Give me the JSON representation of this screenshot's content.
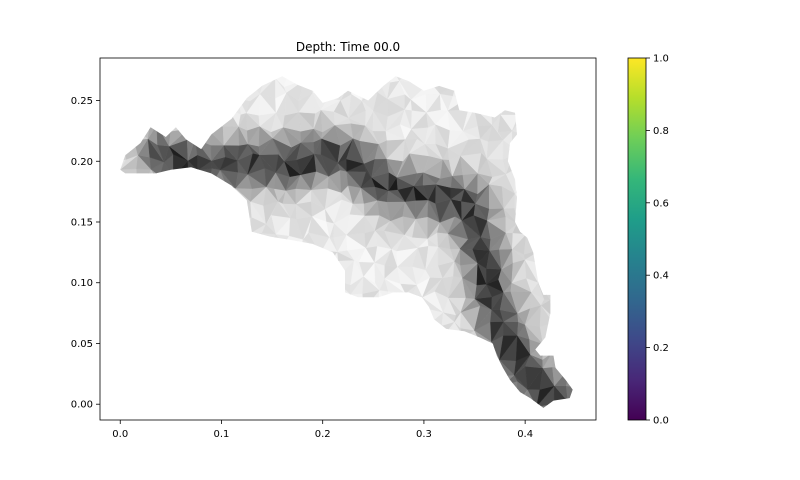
{
  "chart_data": {
    "type": "heatmap",
    "title": "Depth: Time 00.0",
    "xlabel": "",
    "ylabel": "",
    "xlim": [
      -0.02,
      0.47
    ],
    "ylim": [
      -0.013,
      0.285
    ],
    "xticks": [
      0.0,
      0.1,
      0.2,
      0.3,
      0.4
    ],
    "xtick_labels": [
      "0.0",
      "0.1",
      "0.2",
      "0.3",
      "0.4"
    ],
    "yticks": [
      0.0,
      0.05,
      0.1,
      0.15,
      0.2,
      0.25
    ],
    "ytick_labels": [
      "0.00",
      "0.05",
      "0.10",
      "0.15",
      "0.20",
      "0.25"
    ],
    "grid": false,
    "surface_colormap": "gray (light = shallow, dark = deep)",
    "colorbar": {
      "colormap": "viridis",
      "range": [
        0.0,
        1.0
      ],
      "ticks": [
        0.0,
        0.2,
        0.4,
        0.6,
        0.8,
        1.0
      ],
      "tick_labels": [
        "0.0",
        "0.2",
        "0.4",
        "0.6",
        "0.8",
        "1.0"
      ],
      "colors": [
        "#440154",
        "#482878",
        "#3e4989",
        "#31688e",
        "#26828e",
        "#1f9e89",
        "#35b779",
        "#6ece58",
        "#b5de2b",
        "#fde725"
      ]
    },
    "domain_outline": [
      [
        0.0,
        0.193
      ],
      [
        0.005,
        0.205
      ],
      [
        0.02,
        0.215
      ],
      [
        0.03,
        0.228
      ],
      [
        0.045,
        0.22
      ],
      [
        0.055,
        0.228
      ],
      [
        0.065,
        0.218
      ],
      [
        0.08,
        0.21
      ],
      [
        0.09,
        0.222
      ],
      [
        0.11,
        0.235
      ],
      [
        0.125,
        0.252
      ],
      [
        0.14,
        0.262
      ],
      [
        0.16,
        0.27
      ],
      [
        0.175,
        0.263
      ],
      [
        0.19,
        0.258
      ],
      [
        0.2,
        0.248
      ],
      [
        0.215,
        0.252
      ],
      [
        0.225,
        0.258
      ],
      [
        0.245,
        0.25
      ],
      [
        0.26,
        0.262
      ],
      [
        0.272,
        0.27
      ],
      [
        0.285,
        0.266
      ],
      [
        0.3,
        0.258
      ],
      [
        0.315,
        0.262
      ],
      [
        0.33,
        0.258
      ],
      [
        0.335,
        0.242
      ],
      [
        0.35,
        0.24
      ],
      [
        0.37,
        0.236
      ],
      [
        0.38,
        0.242
      ],
      [
        0.39,
        0.24
      ],
      [
        0.392,
        0.222
      ],
      [
        0.385,
        0.215
      ],
      [
        0.383,
        0.2
      ],
      [
        0.39,
        0.185
      ],
      [
        0.392,
        0.17
      ],
      [
        0.39,
        0.15
      ],
      [
        0.395,
        0.142
      ],
      [
        0.402,
        0.137
      ],
      [
        0.408,
        0.125
      ],
      [
        0.413,
        0.1
      ],
      [
        0.418,
        0.09
      ],
      [
        0.425,
        0.09
      ],
      [
        0.425,
        0.075
      ],
      [
        0.42,
        0.055
      ],
      [
        0.41,
        0.045
      ],
      [
        0.415,
        0.04
      ],
      [
        0.428,
        0.04
      ],
      [
        0.43,
        0.03
      ],
      [
        0.44,
        0.02
      ],
      [
        0.447,
        0.012
      ],
      [
        0.444,
        0.005
      ],
      [
        0.428,
        0.003
      ],
      [
        0.418,
        -0.003
      ],
      [
        0.405,
        0.005
      ],
      [
        0.395,
        0.01
      ],
      [
        0.385,
        0.02
      ],
      [
        0.378,
        0.03
      ],
      [
        0.372,
        0.04
      ],
      [
        0.368,
        0.05
      ],
      [
        0.355,
        0.055
      ],
      [
        0.34,
        0.06
      ],
      [
        0.322,
        0.062
      ],
      [
        0.31,
        0.07
      ],
      [
        0.305,
        0.08
      ],
      [
        0.298,
        0.088
      ],
      [
        0.285,
        0.092
      ],
      [
        0.27,
        0.092
      ],
      [
        0.255,
        0.088
      ],
      [
        0.235,
        0.088
      ],
      [
        0.222,
        0.092
      ],
      [
        0.222,
        0.11
      ],
      [
        0.21,
        0.125
      ],
      [
        0.19,
        0.132
      ],
      [
        0.17,
        0.135
      ],
      [
        0.148,
        0.138
      ],
      [
        0.13,
        0.142
      ],
      [
        0.125,
        0.168
      ],
      [
        0.11,
        0.18
      ],
      [
        0.09,
        0.19
      ],
      [
        0.07,
        0.195
      ],
      [
        0.05,
        0.193
      ],
      [
        0.035,
        0.19
      ],
      [
        0.02,
        0.19
      ],
      [
        0.005,
        0.19
      ]
    ],
    "channel_path": [
      [
        0.04,
        0.205
      ],
      [
        0.08,
        0.197
      ],
      [
        0.12,
        0.2
      ],
      [
        0.165,
        0.198
      ],
      [
        0.2,
        0.205
      ],
      [
        0.23,
        0.2
      ],
      [
        0.26,
        0.18
      ],
      [
        0.29,
        0.175
      ],
      [
        0.32,
        0.17
      ],
      [
        0.345,
        0.165
      ],
      [
        0.352,
        0.14
      ],
      [
        0.362,
        0.115
      ],
      [
        0.365,
        0.09
      ],
      [
        0.375,
        0.065
      ],
      [
        0.388,
        0.045
      ],
      [
        0.395,
        0.03
      ],
      [
        0.408,
        0.017
      ],
      [
        0.43,
        0.006
      ]
    ]
  }
}
